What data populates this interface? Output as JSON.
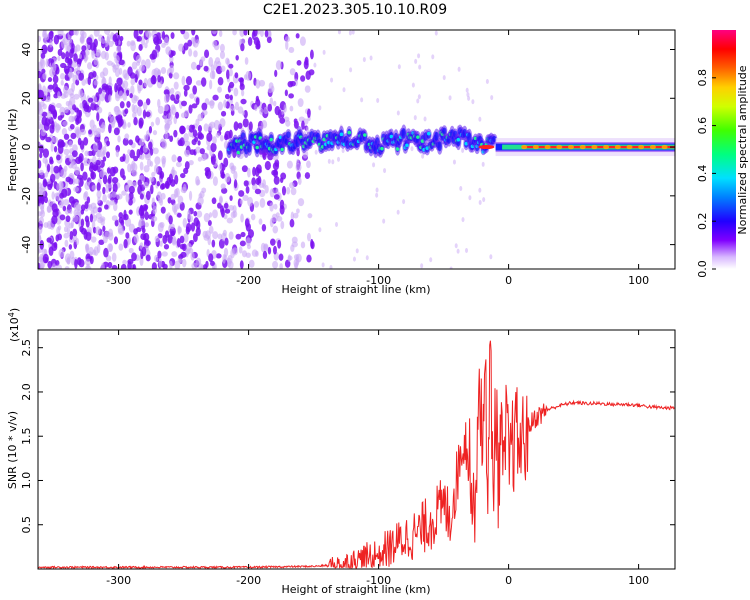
{
  "title": "C2E1.2023.305.10.10.R09",
  "chart_data": [
    {
      "type": "heatmap",
      "title": "C2E1.2023.305.10.10.R09",
      "xlabel": "Height of straight line (km)",
      "ylabel": "Frequency (Hz)",
      "xlim": [
        -362,
        128
      ],
      "ylim": [
        -50,
        48
      ],
      "xticks": [
        -300,
        -200,
        -100,
        0,
        100
      ],
      "xtick_labels": [
        "-300",
        "-200",
        "-100",
        "0",
        "100"
      ],
      "yticks": [
        -40,
        -20,
        0,
        20,
        40
      ],
      "ytick_labels": [
        "-40",
        "-20",
        "0",
        "20",
        "40"
      ],
      "colorbar": {
        "label": "Normalized spectral amplitude",
        "range": [
          0,
          1
        ],
        "ticks": [
          0.0,
          0.2,
          0.4,
          0.6,
          0.8
        ],
        "tick_labels": [
          "0.0",
          "0.2",
          "0.4",
          "0.6",
          "0.8"
        ],
        "colors": [
          "#ffffff",
          "#8000ff",
          "#0000ff",
          "#00e0ff",
          "#00ff60",
          "#c0ff00",
          "#ffff00",
          "#ff8000",
          "#ff0000",
          "#ff0080"
        ]
      },
      "signal_trace": [
        {
          "x": -215,
          "y": 1
        },
        {
          "x": -200,
          "y": 2
        },
        {
          "x": -180,
          "y": 1
        },
        {
          "x": -160,
          "y": 3
        },
        {
          "x": -140,
          "y": 2
        },
        {
          "x": -120,
          "y": 4
        },
        {
          "x": -100,
          "y": 1
        },
        {
          "x": -80,
          "y": 3
        },
        {
          "x": -60,
          "y": 2
        },
        {
          "x": -40,
          "y": 5
        },
        {
          "x": -25,
          "y": 0
        },
        {
          "x": -10,
          "y": 1
        },
        {
          "x": 0,
          "y": 1
        },
        {
          "x": 20,
          "y": 0
        },
        {
          "x": 60,
          "y": 0
        },
        {
          "x": 100,
          "y": 0
        },
        {
          "x": 128,
          "y": 0
        }
      ]
    },
    {
      "type": "line",
      "xlabel": "Height of straight line (km)",
      "ylabel": "SNR (10 * v/v)",
      "y_scale_label": "(x10",
      "y_scale_exponent": "4",
      "y_scale_suffix": ")",
      "xlim": [
        -362,
        128
      ],
      "ylim": [
        0,
        2.7
      ],
      "xticks": [
        -300,
        -200,
        -100,
        0,
        100
      ],
      "xtick_labels": [
        "-300",
        "-200",
        "-100",
        "0",
        "100"
      ],
      "yticks": [
        0.5,
        1.0,
        1.5,
        2.0,
        2.5
      ],
      "ytick_labels": [
        "0.5",
        "1.0",
        "1.5",
        "2.0",
        "2.5"
      ],
      "series": [
        {
          "color": "#ee2222",
          "x": [
            -362,
            -300,
            -200,
            -150,
            -130,
            -120,
            -110,
            -100,
            -90,
            -80,
            -70,
            -60,
            -50,
            -45,
            -40,
            -35,
            -30,
            -27,
            -24,
            -22,
            -20,
            -18,
            -16,
            -14,
            -12,
            -10,
            -8,
            -6,
            -4,
            -2,
            0,
            5,
            10,
            15,
            20,
            25,
            30,
            40,
            50,
            60,
            70,
            80,
            90,
            100,
            110,
            120,
            128
          ],
          "y": [
            0.02,
            0.02,
            0.02,
            0.03,
            0.05,
            0.08,
            0.12,
            0.18,
            0.25,
            0.35,
            0.4,
            0.55,
            0.7,
            0.6,
            1.0,
            1.5,
            1.3,
            0.5,
            1.6,
            2.2,
            1.0,
            2.7,
            0.6,
            2.5,
            0.8,
            2.0,
            0.9,
            1.7,
            0.9,
            1.6,
            1.2,
            1.5,
            1.4,
            1.6,
            1.7,
            1.75,
            1.8,
            1.85,
            1.88,
            1.87,
            1.87,
            1.86,
            1.86,
            1.85,
            1.83,
            1.82,
            1.82
          ]
        }
      ]
    }
  ]
}
